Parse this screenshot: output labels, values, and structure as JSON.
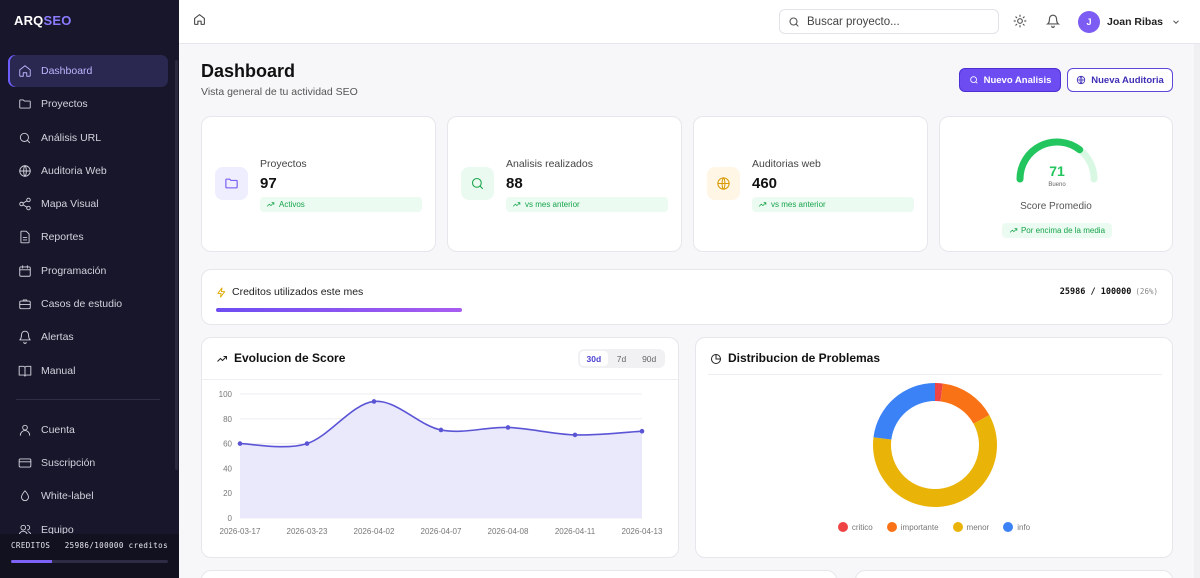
{
  "sidebar": {
    "logo_main": "ARQ",
    "logo_accent": "SEO",
    "items": [
      {
        "label": "Dashboard",
        "icon": "home-icon"
      },
      {
        "label": "Proyectos",
        "icon": "folder-icon"
      },
      {
        "label": "Análisis URL",
        "icon": "search-icon"
      },
      {
        "label": "Auditoria Web",
        "icon": "globe-icon"
      },
      {
        "label": "Mapa Visual",
        "icon": "share-icon"
      },
      {
        "label": "Reportes",
        "icon": "document-icon"
      },
      {
        "label": "Programación",
        "icon": "calendar-icon"
      },
      {
        "label": "Casos de estudio",
        "icon": "briefcase-icon"
      },
      {
        "label": "Alertas",
        "icon": "bell-icon"
      },
      {
        "label": "Manual",
        "icon": "book-icon"
      }
    ],
    "account_items": [
      {
        "label": "Cuenta",
        "icon": "user-icon"
      },
      {
        "label": "Suscripción",
        "icon": "credit-card-icon"
      },
      {
        "label": "White-label",
        "icon": "droplet-icon"
      },
      {
        "label": "Equipo",
        "icon": "team-icon"
      }
    ],
    "credits_label": "CREDITOS",
    "credits_value": "25986/100000 creditos",
    "credits_fraction": 0.26
  },
  "topbar": {
    "search_placeholder": "Buscar proyecto...",
    "user_initial": "J",
    "user_name": "Joan Ribas"
  },
  "header": {
    "title": "Dashboard",
    "subtitle": "Vista general de tu actividad SEO",
    "new_analysis": "Nuevo Analisis",
    "new_audit": "Nueva Auditoria"
  },
  "stats": [
    {
      "label": "Proyectos",
      "value": "97",
      "badge": "Activos",
      "icon": "folder-icon",
      "color": "#6d4df2",
      "bg": "#efeefe"
    },
    {
      "label": "Analisis realizados",
      "value": "88",
      "badge": "vs mes anterior",
      "icon": "search-icon",
      "color": "#16a34a",
      "bg": "#eafaf0"
    },
    {
      "label": "Auditorias web",
      "value": "460",
      "badge": "vs mes anterior",
      "icon": "globe-icon",
      "color": "#d99a06",
      "bg": "#fff6e5"
    }
  ],
  "score": {
    "value": "71",
    "fraction": 0.71,
    "grade": "Bueno",
    "label": "Score Promedio",
    "badge": "Por encima de la media",
    "color": "#22c55e"
  },
  "credits": {
    "title": "Creditos utilizados este mes",
    "used": "25986",
    "total": "100000",
    "percent": "(26%)",
    "fraction": 0.26
  },
  "score_chart": {
    "title": "Evolucion de Score",
    "tabs": [
      "30d",
      "7d",
      "90d"
    ],
    "active_tab": "30d"
  },
  "distribution": {
    "title": "Distribucion de Problemas"
  },
  "chart_data": [
    {
      "type": "area",
      "title": "Evolucion de Score",
      "x": [
        "2026-03-17",
        "2026-03-23",
        "2026-04-02",
        "2026-04-07",
        "2026-04-08",
        "2026-04-11",
        "2026-04-13"
      ],
      "values": [
        60,
        60,
        94,
        71,
        73,
        67,
        70
      ],
      "ylim": [
        0,
        100
      ],
      "yticks": [
        0,
        20,
        40,
        60,
        80,
        100
      ],
      "grid": true,
      "color": "#5b55d6"
    },
    {
      "type": "pie",
      "title": "Distribucion de Problemas",
      "labels": [
        "critico",
        "importante",
        "menor",
        "info"
      ],
      "values": [
        2,
        15,
        60,
        23
      ],
      "colors": [
        "#ef4444",
        "#f97316",
        "#eab308",
        "#3b82f6"
      ],
      "legend": "bottom"
    }
  ]
}
